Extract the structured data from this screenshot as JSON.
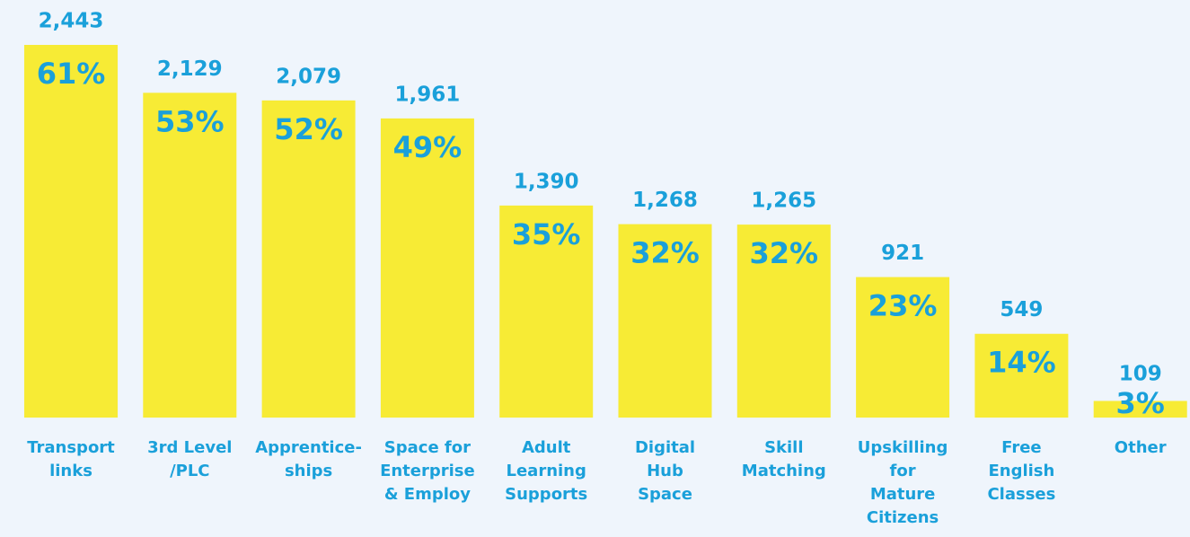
{
  "chart_data": {
    "type": "bar",
    "categories": [
      [
        "Transport",
        "links"
      ],
      [
        "3rd Level",
        "/PLC"
      ],
      [
        "Apprentice-",
        "ships"
      ],
      [
        "Space for",
        "Enterprise",
        "& Employ"
      ],
      [
        "Adult",
        "Learning",
        "Supports"
      ],
      [
        "Digital",
        "Hub",
        "Space"
      ],
      [
        "Skill",
        "Matching"
      ],
      [
        "Upskilling",
        "for",
        "Mature",
        "Citizens"
      ],
      [
        "Free",
        "English",
        "Classes"
      ],
      [
        "Other"
      ]
    ],
    "values": [
      2443,
      2129,
      2079,
      1961,
      1390,
      1268,
      1265,
      921,
      549,
      109
    ],
    "value_labels": [
      "2,443",
      "2,129",
      "2,079",
      "1,961",
      "1,390",
      "1,268",
      "1,265",
      "921",
      "549",
      "109"
    ],
    "percentages": [
      61,
      53,
      52,
      49,
      35,
      32,
      32,
      23,
      14,
      3
    ],
    "percentage_labels": [
      "61%",
      "53%",
      "52%",
      "49%",
      "35%",
      "32%",
      "32%",
      "23%",
      "14%",
      "3%"
    ],
    "color": "#f7eb35",
    "label_color": "#1aa0da"
  }
}
